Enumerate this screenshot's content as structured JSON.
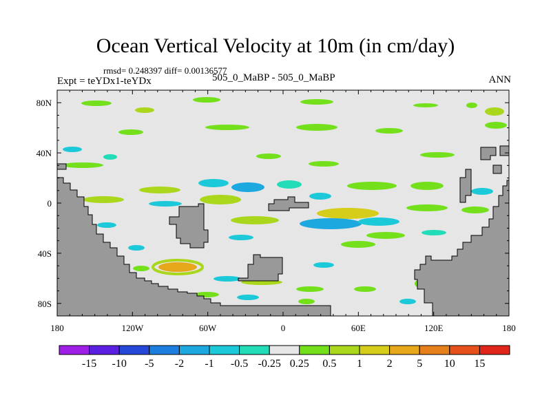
{
  "chart_data": {
    "type": "heatmap",
    "title": "Ocean Vertical Velocity at 10m (in cm/day)",
    "stats_text": "rmsd= 0.248397 diff= 0.00136577",
    "experiment_text": "Expt = teYDx1-teYDx",
    "subtitle": "505_0_MaBP - 505_0_MaBP",
    "season": "ANN",
    "xlabel": "",
    "ylabel": "",
    "xlim": [
      -180,
      180
    ],
    "ylim": [
      -90,
      90
    ],
    "x_ticks": [
      {
        "value": -180,
        "label": "180"
      },
      {
        "value": -120,
        "label": "120W"
      },
      {
        "value": -60,
        "label": "60W"
      },
      {
        "value": 0,
        "label": "0"
      },
      {
        "value": 60,
        "label": "60E"
      },
      {
        "value": 120,
        "label": "120E"
      },
      {
        "value": 180,
        "label": "180"
      }
    ],
    "y_ticks": [
      {
        "value": 80,
        "label": "80N"
      },
      {
        "value": 40,
        "label": "40N"
      },
      {
        "value": 0,
        "label": "0"
      },
      {
        "value": -40,
        "label": "40S"
      },
      {
        "value": -80,
        "label": "80S"
      }
    ],
    "colorbar": {
      "levels": [
        "-15",
        "-10",
        "-5",
        "-2",
        "-1",
        "-0.5",
        "-0.25",
        "0.25",
        "0.5",
        "1",
        "2",
        "5",
        "10",
        "15"
      ],
      "colors": [
        "#9f1fe6",
        "#5a1fe0",
        "#2648d8",
        "#1c7fe0",
        "#1ea8e0",
        "#1cc9d9",
        "#22dcb8",
        "#e6e6e6",
        "#74e01c",
        "#aad61c",
        "#d6cc1a",
        "#e6a81a",
        "#e6801a",
        "#e6501a",
        "#e0261a"
      ]
    },
    "background_value_color": "#e6e6e6",
    "land_color": "#999999"
  }
}
